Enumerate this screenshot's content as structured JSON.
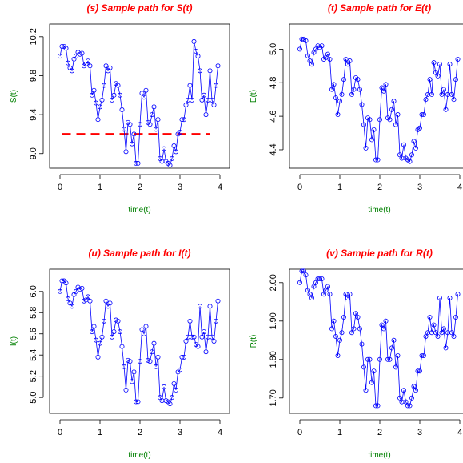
{
  "chart_data": [
    {
      "type": "line",
      "title": "(s) Sample path for S(t)",
      "x_label": "time(t)",
      "y_label": "S(t)",
      "color": "#0000ff",
      "x": [
        0,
        0.05,
        0.1,
        0.15,
        0.2,
        0.25,
        0.3,
        0.35,
        0.4,
        0.45,
        0.5,
        0.55,
        0.6,
        0.65,
        0.7,
        0.75,
        0.8,
        0.85,
        0.9,
        0.95,
        1,
        1.05,
        1.1,
        1.15,
        1.2,
        1.25,
        1.3,
        1.35,
        1.4,
        1.45,
        1.5,
        1.55,
        1.6,
        1.65,
        1.7,
        1.75,
        1.8,
        1.85,
        1.9,
        1.95,
        2,
        2.05,
        2.1,
        2.15,
        2.2,
        2.25,
        2.3,
        2.35,
        2.4,
        2.45,
        2.5,
        2.55,
        2.6,
        2.65,
        2.7,
        2.75,
        2.8,
        2.85,
        2.9,
        2.95,
        3,
        3.05,
        3.1,
        3.15,
        3.2,
        3.25,
        3.3,
        3.35,
        3.4,
        3.45,
        3.5,
        3.55,
        3.6,
        3.65,
        3.7,
        3.75,
        3.8,
        3.85,
        3.9,
        3.95
      ],
      "values": [
        10,
        10.1,
        10.1,
        10.08,
        9.93,
        9.88,
        9.85,
        9.97,
        10,
        10.04,
        10.02,
        10.03,
        9.9,
        9.92,
        9.95,
        9.9,
        9.6,
        9.65,
        9.52,
        9.35,
        9.48,
        9.55,
        9.7,
        9.9,
        9.85,
        9.88,
        9.55,
        9.6,
        9.72,
        9.7,
        9.6,
        9.45,
        9.25,
        9.02,
        9.32,
        9.3,
        9.1,
        9.2,
        8.9,
        8.9,
        9.3,
        9.62,
        9.58,
        9.65,
        9.32,
        9.3,
        9.4,
        9.48,
        9.25,
        9.35,
        8.95,
        8.92,
        9.05,
        8.92,
        8.9,
        8.88,
        8.95,
        9.08,
        9.02,
        9.2,
        9.22,
        9.35,
        9.35,
        9.5,
        9.55,
        9.7,
        9.55,
        10.15,
        10.05,
        10,
        9.85,
        9.55,
        9.6,
        9.4,
        9.55,
        9.85,
        9.55,
        9.5,
        9.7,
        9.9
      ],
      "xlim": [
        -0.26,
        4.24
      ],
      "xticks": [
        0,
        1,
        2,
        3,
        4
      ],
      "ylim": [
        8.85,
        10.33
      ],
      "yticks": [
        {
          "value": 9,
          "label": "9.0"
        },
        9.4,
        9.8,
        10.2
      ],
      "hline": {
        "y": 9.2,
        "x": [
          0.05,
          3.75
        ],
        "color": "#ff0000"
      }
    },
    {
      "type": "line",
      "title": "(t) Sample path for E(t)",
      "x_label": "time(t)",
      "y_label": "E(t)",
      "color": "#0000ff",
      "x": [
        0,
        0.05,
        0.1,
        0.15,
        0.2,
        0.25,
        0.3,
        0.35,
        0.4,
        0.45,
        0.5,
        0.55,
        0.6,
        0.65,
        0.7,
        0.75,
        0.8,
        0.85,
        0.9,
        0.95,
        1,
        1.05,
        1.1,
        1.15,
        1.2,
        1.25,
        1.3,
        1.35,
        1.4,
        1.45,
        1.5,
        1.55,
        1.6,
        1.65,
        1.7,
        1.75,
        1.8,
        1.85,
        1.9,
        1.95,
        2,
        2.05,
        2.1,
        2.15,
        2.2,
        2.25,
        2.3,
        2.35,
        2.4,
        2.45,
        2.5,
        2.55,
        2.6,
        2.65,
        2.7,
        2.75,
        2.8,
        2.85,
        2.9,
        2.95,
        3,
        3.05,
        3.1,
        3.15,
        3.2,
        3.25,
        3.3,
        3.35,
        3.4,
        3.45,
        3.5,
        3.55,
        3.6,
        3.65,
        3.7,
        3.75,
        3.8,
        3.85,
        3.9,
        3.95
      ],
      "values": [
        5,
        5.06,
        5.06,
        5.05,
        4.96,
        4.93,
        4.91,
        4.98,
        5,
        5.02,
        5.01,
        5.02,
        4.94,
        4.95,
        4.97,
        4.94,
        4.76,
        4.79,
        4.71,
        4.61,
        4.69,
        4.73,
        4.82,
        4.94,
        4.91,
        4.93,
        4.73,
        4.76,
        4.83,
        4.82,
        4.76,
        4.67,
        4.55,
        4.41,
        4.59,
        4.58,
        4.46,
        4.52,
        4.34,
        4.34,
        4.58,
        4.77,
        4.75,
        4.79,
        4.59,
        4.58,
        4.64,
        4.69,
        4.55,
        4.61,
        4.37,
        4.35,
        4.43,
        4.35,
        4.34,
        4.33,
        4.37,
        4.45,
        4.41,
        4.52,
        4.53,
        4.61,
        4.61,
        4.7,
        4.73,
        4.82,
        4.73,
        4.92,
        4.86,
        4.84,
        4.91,
        4.73,
        4.76,
        4.64,
        4.73,
        4.91,
        4.73,
        4.7,
        4.82,
        4.94
      ],
      "xlim": [
        -0.26,
        4.24
      ],
      "xticks": [
        0,
        1,
        2,
        3,
        4
      ],
      "ylim": [
        4.29,
        5.15
      ],
      "yticks": [
        4.4,
        4.6,
        4.8,
        {
          "value": 5,
          "label": "5.0"
        }
      ]
    },
    {
      "type": "line",
      "title": "(u) Sample path for I(t)",
      "x_label": "time(t)",
      "y_label": "I(t)",
      "color": "#0000ff",
      "x": [
        0,
        0.05,
        0.1,
        0.15,
        0.2,
        0.25,
        0.3,
        0.35,
        0.4,
        0.45,
        0.5,
        0.55,
        0.6,
        0.65,
        0.7,
        0.75,
        0.8,
        0.85,
        0.9,
        0.95,
        1,
        1.05,
        1.1,
        1.15,
        1.2,
        1.25,
        1.3,
        1.35,
        1.4,
        1.45,
        1.5,
        1.55,
        1.6,
        1.65,
        1.7,
        1.75,
        1.8,
        1.85,
        1.9,
        1.95,
        2,
        2.05,
        2.1,
        2.15,
        2.2,
        2.25,
        2.3,
        2.35,
        2.4,
        2.45,
        2.5,
        2.55,
        2.6,
        2.65,
        2.7,
        2.75,
        2.8,
        2.85,
        2.9,
        2.95,
        3,
        3.05,
        3.1,
        3.15,
        3.2,
        3.25,
        3.3,
        3.35,
        3.4,
        3.45,
        3.5,
        3.55,
        3.6,
        3.65,
        3.7,
        3.75,
        3.8,
        3.85,
        3.9,
        3.95
      ],
      "values": [
        6,
        6.1,
        6.1,
        6.08,
        5.93,
        5.89,
        5.86,
        5.97,
        6,
        6.04,
        6.02,
        6.03,
        5.91,
        5.92,
        5.95,
        5.91,
        5.62,
        5.67,
        5.54,
        5.38,
        5.51,
        5.57,
        5.72,
        5.91,
        5.86,
        5.89,
        5.57,
        5.62,
        5.73,
        5.72,
        5.62,
        5.48,
        5.29,
        5.07,
        5.35,
        5.34,
        5.15,
        5.24,
        4.96,
        4.96,
        5.34,
        5.64,
        5.6,
        5.67,
        5.35,
        5.34,
        5.43,
        5.51,
        5.29,
        5.38,
        5,
        4.97,
        5.1,
        4.97,
        4.96,
        4.94,
        5,
        5.13,
        5.07,
        5.24,
        5.26,
        5.38,
        5.38,
        5.53,
        5.57,
        5.72,
        5.57,
        5.57,
        5.5,
        5.48,
        5.86,
        5.57,
        5.62,
        5.43,
        5.57,
        5.86,
        5.57,
        5.53,
        5.72,
        5.91
      ],
      "xlim": [
        -0.26,
        4.24
      ],
      "xticks": [
        0,
        1,
        2,
        3,
        4
      ],
      "ylim": [
        4.85,
        6.21
      ],
      "yticks": [
        {
          "value": 5,
          "label": "5.0"
        },
        5.2,
        5.4,
        5.6,
        5.8,
        {
          "value": 6,
          "label": "6.0"
        }
      ]
    },
    {
      "type": "line",
      "title": "(v) Sample path for R(t)",
      "x_label": "time(t)",
      "y_label": "R(t)",
      "color": "#0000ff",
      "x": [
        0,
        0.05,
        0.1,
        0.15,
        0.2,
        0.25,
        0.3,
        0.35,
        0.4,
        0.45,
        0.5,
        0.55,
        0.6,
        0.65,
        0.7,
        0.75,
        0.8,
        0.85,
        0.9,
        0.95,
        1,
        1.05,
        1.1,
        1.15,
        1.2,
        1.25,
        1.3,
        1.35,
        1.4,
        1.45,
        1.5,
        1.55,
        1.6,
        1.65,
        1.7,
        1.75,
        1.8,
        1.85,
        1.9,
        1.95,
        2,
        2.05,
        2.1,
        2.15,
        2.2,
        2.25,
        2.3,
        2.35,
        2.4,
        2.45,
        2.5,
        2.55,
        2.6,
        2.65,
        2.7,
        2.75,
        2.8,
        2.85,
        2.9,
        2.95,
        3,
        3.05,
        3.1,
        3.15,
        3.2,
        3.25,
        3.3,
        3.35,
        3.4,
        3.45,
        3.5,
        3.55,
        3.6,
        3.65,
        3.7,
        3.75,
        3.8,
        3.85,
        3.9,
        3.95
      ],
      "values": [
        2,
        2.03,
        2.03,
        2.02,
        1.98,
        1.97,
        1.96,
        1.99,
        2,
        2.01,
        2.01,
        2.01,
        1.97,
        1.98,
        1.99,
        1.97,
        1.88,
        1.9,
        1.86,
        1.81,
        1.85,
        1.87,
        1.91,
        1.97,
        1.96,
        1.97,
        1.87,
        1.88,
        1.92,
        1.91,
        1.88,
        1.84,
        1.78,
        1.72,
        1.8,
        1.8,
        1.74,
        1.77,
        1.68,
        1.68,
        1.8,
        1.89,
        1.88,
        1.9,
        1.8,
        1.8,
        1.83,
        1.85,
        1.78,
        1.81,
        1.7,
        1.69,
        1.72,
        1.69,
        1.68,
        1.68,
        1.7,
        1.73,
        1.72,
        1.77,
        1.77,
        1.81,
        1.81,
        1.86,
        1.87,
        1.91,
        1.87,
        1.89,
        1.87,
        1.86,
        1.96,
        1.87,
        1.88,
        1.83,
        1.87,
        1.96,
        1.87,
        1.86,
        1.91,
        1.97
      ],
      "xlim": [
        -0.26,
        4.24
      ],
      "xticks": [
        0,
        1,
        2,
        3,
        4
      ],
      "ylim": [
        1.66,
        2.035
      ],
      "yticks": [
        {
          "value": 1.7,
          "label": "1.70"
        },
        {
          "value": 1.8,
          "label": "1.80"
        },
        {
          "value": 1.9,
          "label": "1.90"
        },
        {
          "value": 2,
          "label": "2.00"
        }
      ]
    }
  ]
}
